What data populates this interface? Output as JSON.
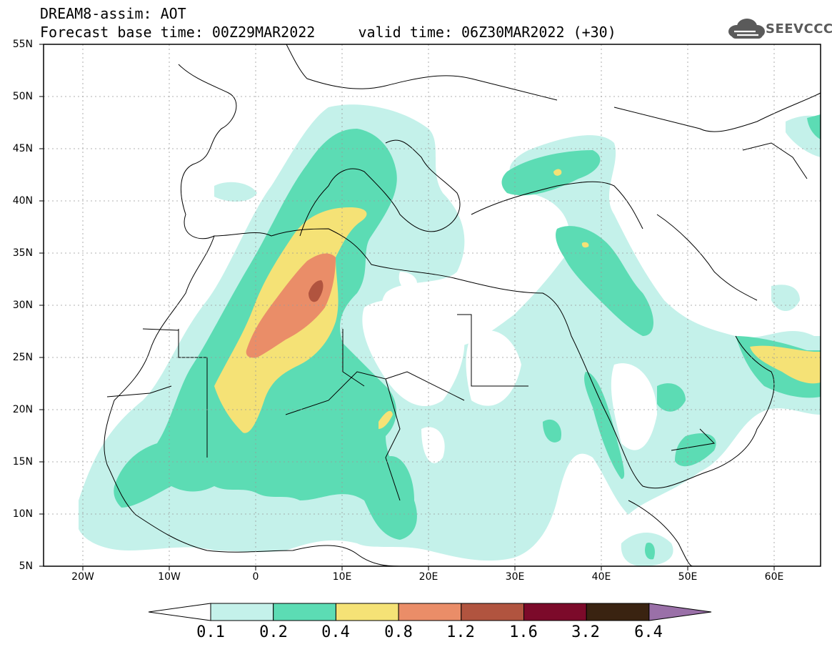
{
  "header": {
    "line1": "DREAM8-assim: AOT",
    "line2": "Forecast base time: 00Z29MAR2022     valid time: 06Z30MAR2022 (+30)"
  },
  "logo": {
    "text": "SEEVCCC",
    "icon": "cloud-icon"
  },
  "map": {
    "projection": "lat-lon",
    "lon_range": [
      -25,
      65
    ],
    "lat_range": [
      5,
      55
    ],
    "lat_labels": [
      "55N",
      "50N",
      "45N",
      "40N",
      "35N",
      "30N",
      "25N",
      "20N",
      "15N",
      "10N",
      "5N"
    ],
    "lon_labels": [
      "20W",
      "10W",
      "0",
      "10E",
      "20E",
      "30E",
      "40E",
      "50E",
      "60E"
    ]
  },
  "colorbar": {
    "labels": [
      "0.1",
      "0.2",
      "0.4",
      "0.8",
      "1.2",
      "1.6",
      "3.2",
      "6.4"
    ],
    "colors": [
      "#ffffff",
      "#c4f1ea",
      "#5cdcb4",
      "#f5e276",
      "#ea8d68",
      "#b1543f",
      "#7c0a2a",
      "#3a2311",
      "#9a70a8"
    ]
  }
}
